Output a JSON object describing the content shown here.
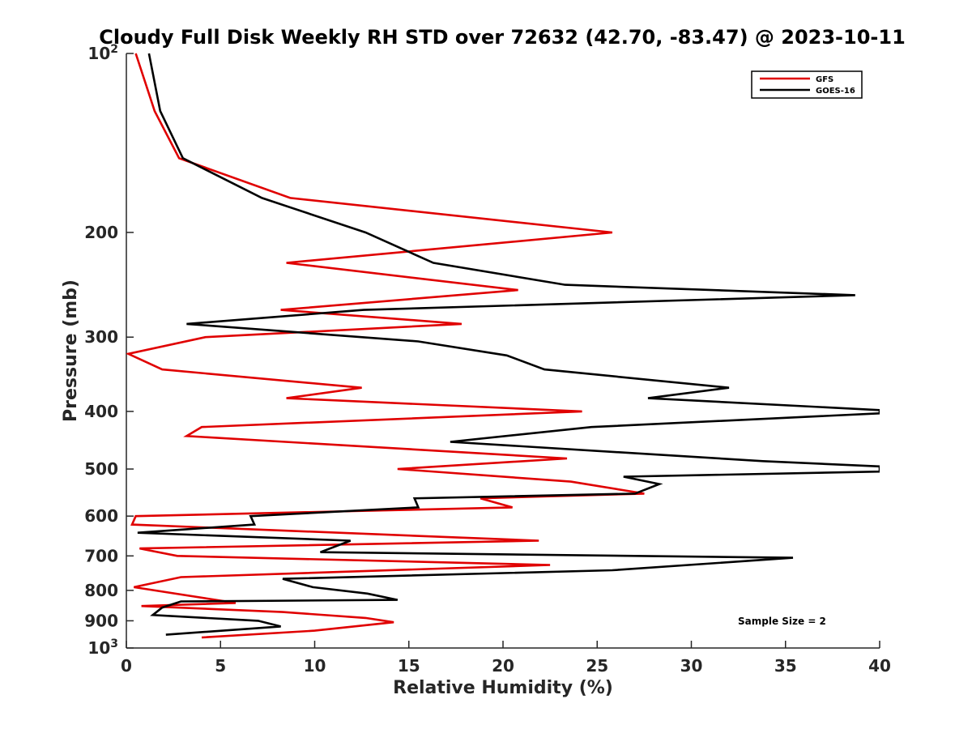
{
  "chart_data": {
    "type": "line",
    "title": "Cloudy Full Disk Weekly RH STD over 72632 (42.70, -83.47) @ 2023-10-11",
    "xlabel": "Relative Humidity (%)",
    "ylabel": "Pressure (mb)",
    "xlim": [
      0,
      40
    ],
    "ylim": [
      100,
      1000
    ],
    "y_scale": "log",
    "y_reversed": true,
    "grid": false,
    "legend_position": "top-right",
    "x_ticks": [
      "0",
      "5",
      "10",
      "15",
      "20",
      "25",
      "30",
      "35",
      "40"
    ],
    "y_ticks": [
      {
        "value": 100,
        "base": "10",
        "exp": "2"
      },
      {
        "value": 200,
        "label": "200"
      },
      {
        "value": 300,
        "label": "300"
      },
      {
        "value": 400,
        "label": "400"
      },
      {
        "value": 500,
        "label": "500"
      },
      {
        "value": 600,
        "label": "600"
      },
      {
        "value": 700,
        "label": "700"
      },
      {
        "value": 800,
        "label": "800"
      },
      {
        "value": 900,
        "label": "900"
      },
      {
        "value": 1000,
        "base": "10",
        "exp": "3"
      }
    ],
    "annotation": "Sample Size = 2",
    "series": [
      {
        "name": "GFS",
        "color": "#e00000",
        "points": [
          [
            0.5,
            100
          ],
          [
            1.5,
            125
          ],
          [
            2.8,
            150
          ],
          [
            8.7,
            175
          ],
          [
            25.8,
            200
          ],
          [
            8.5,
            225
          ],
          [
            20.8,
            250
          ],
          [
            8.2,
            270
          ],
          [
            17.8,
            285
          ],
          [
            4.2,
            300
          ],
          [
            0.1,
            320
          ],
          [
            1.9,
            340
          ],
          [
            12.5,
            365
          ],
          [
            8.5,
            380
          ],
          [
            24.2,
            400
          ],
          [
            4.0,
            425
          ],
          [
            3.2,
            440
          ],
          [
            23.4,
            480
          ],
          [
            14.4,
            500
          ],
          [
            23.6,
            525
          ],
          [
            27.5,
            550
          ],
          [
            18.8,
            560
          ],
          [
            20.5,
            580
          ],
          [
            0.5,
            600
          ],
          [
            0.3,
            620
          ],
          [
            21.9,
            660
          ],
          [
            0.7,
            680
          ],
          [
            2.7,
            700
          ],
          [
            22.5,
            725
          ],
          [
            2.9,
            760
          ],
          [
            0.4,
            790
          ],
          [
            5.8,
            840
          ],
          [
            0.8,
            850
          ],
          [
            8.3,
            870
          ],
          [
            12.7,
            890
          ],
          [
            14.2,
            905
          ],
          [
            10.0,
            935
          ],
          [
            4.0,
            960
          ]
        ]
      },
      {
        "name": "GOES-16",
        "color": "#000000",
        "points": [
          [
            1.2,
            100
          ],
          [
            1.8,
            125
          ],
          [
            3.0,
            150
          ],
          [
            7.2,
            175
          ],
          [
            12.7,
            200
          ],
          [
            16.3,
            225
          ],
          [
            23.3,
            245
          ],
          [
            38.7,
            255
          ],
          [
            12.6,
            270
          ],
          [
            3.2,
            285
          ],
          [
            15.5,
            305
          ],
          [
            20.2,
            322
          ],
          [
            22.2,
            340
          ],
          [
            32.0,
            365
          ],
          [
            27.7,
            380
          ],
          [
            40.0,
            398
          ],
          [
            40.0,
            403
          ],
          [
            24.7,
            425
          ],
          [
            17.2,
            450
          ],
          [
            33.8,
            485
          ],
          [
            40.0,
            495
          ],
          [
            40.0,
            505
          ],
          [
            26.4,
            515
          ],
          [
            28.3,
            530
          ],
          [
            27.0,
            550
          ],
          [
            15.3,
            560
          ],
          [
            15.5,
            580
          ],
          [
            6.6,
            600
          ],
          [
            6.8,
            620
          ],
          [
            0.6,
            640
          ],
          [
            11.9,
            660
          ],
          [
            10.3,
            690
          ],
          [
            35.4,
            705
          ],
          [
            25.8,
            740
          ],
          [
            8.3,
            765
          ],
          [
            9.9,
            790
          ],
          [
            12.8,
            810
          ],
          [
            14.4,
            830
          ],
          [
            2.9,
            835
          ],
          [
            1.9,
            855
          ],
          [
            1.4,
            880
          ],
          [
            7.0,
            900
          ],
          [
            8.2,
            920
          ],
          [
            2.1,
            950
          ]
        ]
      }
    ]
  }
}
